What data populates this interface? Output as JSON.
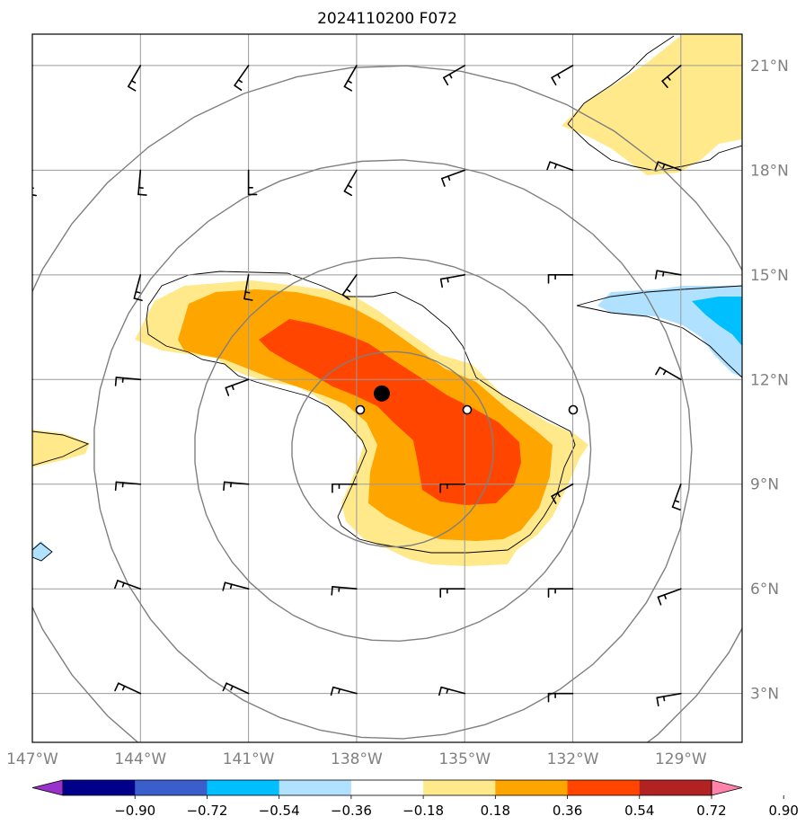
{
  "title": "2024110200 F072",
  "map": {
    "lon_range": [
      -147,
      -127.3
    ],
    "lat_range": [
      1.6,
      21.9
    ],
    "lat_ticks": [
      3,
      6,
      9,
      12,
      15,
      18,
      21
    ],
    "lon_ticks": [
      -147,
      -144,
      -141,
      -138,
      -135,
      -132,
      -129
    ],
    "lat_labels": [
      "3°N",
      "6°N",
      "9°N",
      "12°N",
      "15°N",
      "18°N",
      "21°N"
    ],
    "lon_labels": [
      "147°W",
      "144°W",
      "141°W",
      "138°W",
      "135°W",
      "132°W",
      "129°W"
    ],
    "gridlines": true,
    "range_rings_center": [
      -137.0,
      10.0
    ],
    "range_rings_radius_deg": [
      2.8,
      5.5,
      8.3,
      11.0
    ],
    "storm_center": [
      -137.3,
      11.6
    ],
    "center_marker_color": "#000000"
  },
  "colorbar": {
    "levels": [
      "−0.90",
      "−0.72",
      "−0.54",
      "−0.36",
      "−0.18",
      "0.18",
      "0.36",
      "0.54",
      "0.72",
      "0.90"
    ],
    "colors": [
      "#9932cc",
      "#00008b",
      "#3a5fcd",
      "#00bfff",
      "#b0e2ff",
      "#ffffff",
      "#ffe98b",
      "#ffa500",
      "#ff4500",
      "#b22222",
      "#ff82ab"
    ],
    "extend": "both",
    "orientation": "horizontal"
  },
  "shading": {
    "colors": {
      "light_yellow": "#ffe98b",
      "orange": "#ffa500",
      "red_orange": "#ff4500",
      "light_blue": "#b0e2ff",
      "deep_sky_blue": "#00bfff"
    }
  },
  "wind_barbs": {
    "color": "#000000",
    "note_units": "knots",
    "grid_lons": [
      -147,
      -144,
      -141,
      -138,
      -135,
      -132,
      -129
    ],
    "grid_lats": [
      21,
      18,
      15,
      12,
      9,
      6,
      3
    ]
  }
}
